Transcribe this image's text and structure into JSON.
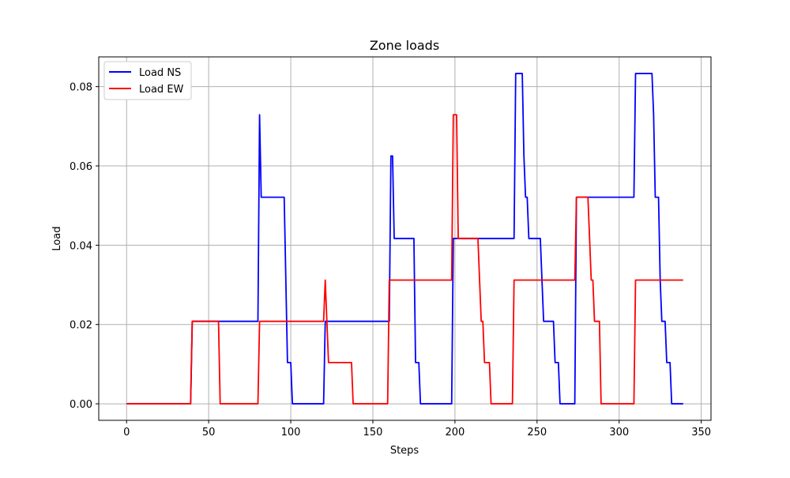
{
  "chart_data": {
    "type": "line",
    "title": "Zone loads",
    "xlabel": "Steps",
    "ylabel": "Load",
    "xlim": [
      -16.95,
      355.95
    ],
    "ylim": [
      -0.00417,
      0.0875
    ],
    "xticks": [
      0,
      50,
      100,
      150,
      200,
      250,
      300,
      350
    ],
    "yticks": [
      0.0,
      0.02,
      0.04,
      0.06,
      0.08
    ],
    "xtick_labels": [
      "0",
      "50",
      "100",
      "150",
      "200",
      "250",
      "300",
      "350"
    ],
    "ytick_labels": [
      "0.00",
      "0.02",
      "0.04",
      "0.06",
      "0.08"
    ],
    "grid": true,
    "legend_position": "upper-left",
    "series": [
      {
        "name": "Load NS",
        "color": "#0000ff",
        "points": [
          [
            0,
            0
          ],
          [
            39,
            0
          ],
          [
            40,
            0.0208
          ],
          [
            80,
            0.0208
          ],
          [
            81,
            0.0729
          ],
          [
            82,
            0.0521
          ],
          [
            96,
            0.0521
          ],
          [
            97,
            0.0312
          ],
          [
            98,
            0.0104
          ],
          [
            100,
            0.0104
          ],
          [
            101,
            0
          ],
          [
            120,
            0
          ],
          [
            121,
            0.0208
          ],
          [
            160,
            0.0208
          ],
          [
            161,
            0.0625
          ],
          [
            162,
            0.0625
          ],
          [
            163,
            0.0417
          ],
          [
            175,
            0.0417
          ],
          [
            176,
            0.0104
          ],
          [
            178,
            0.0104
          ],
          [
            179,
            0
          ],
          [
            198,
            0
          ],
          [
            199,
            0.0417
          ],
          [
            236,
            0.0417
          ],
          [
            237,
            0.0833
          ],
          [
            241,
            0.0833
          ],
          [
            242,
            0.0625
          ],
          [
            243,
            0.0521
          ],
          [
            244,
            0.0521
          ],
          [
            245,
            0.0417
          ],
          [
            252,
            0.0417
          ],
          [
            253,
            0.0312
          ],
          [
            254,
            0.0208
          ],
          [
            260,
            0.0208
          ],
          [
            261,
            0.0104
          ],
          [
            263,
            0.0104
          ],
          [
            264,
            0
          ],
          [
            273,
            0
          ],
          [
            274,
            0.0521
          ],
          [
            309,
            0.0521
          ],
          [
            310,
            0.0833
          ],
          [
            320,
            0.0833
          ],
          [
            321,
            0.0729
          ],
          [
            322,
            0.0521
          ],
          [
            324,
            0.0521
          ],
          [
            325,
            0.0312
          ],
          [
            326,
            0.0208
          ],
          [
            328,
            0.0208
          ],
          [
            329,
            0.0104
          ],
          [
            331,
            0.0104
          ],
          [
            332,
            0
          ],
          [
            339,
            0
          ]
        ]
      },
      {
        "name": "Load EW",
        "color": "#ff0000",
        "points": [
          [
            0,
            0
          ],
          [
            39,
            0
          ],
          [
            40,
            0.0208
          ],
          [
            56,
            0.0208
          ],
          [
            57,
            0
          ],
          [
            80,
            0
          ],
          [
            81,
            0.0208
          ],
          [
            120,
            0.0208
          ],
          [
            121,
            0.0312
          ],
          [
            122,
            0.0208
          ],
          [
            123,
            0.0104
          ],
          [
            137,
            0.0104
          ],
          [
            138,
            0
          ],
          [
            159,
            0
          ],
          [
            160,
            0.0312
          ],
          [
            198,
            0.0312
          ],
          [
            199,
            0.0729
          ],
          [
            201,
            0.0729
          ],
          [
            202,
            0.0417
          ],
          [
            214,
            0.0417
          ],
          [
            215,
            0.0312
          ],
          [
            216,
            0.0208
          ],
          [
            217,
            0.0208
          ],
          [
            218,
            0.0104
          ],
          [
            221,
            0.0104
          ],
          [
            222,
            0
          ],
          [
            235,
            0
          ],
          [
            236,
            0.0312
          ],
          [
            273,
            0.0312
          ],
          [
            274,
            0.0521
          ],
          [
            281,
            0.0521
          ],
          [
            282,
            0.0417
          ],
          [
            283,
            0.0312
          ],
          [
            284,
            0.0312
          ],
          [
            285,
            0.0208
          ],
          [
            288,
            0.0208
          ],
          [
            289,
            0
          ],
          [
            309,
            0
          ],
          [
            310,
            0.0312
          ],
          [
            339,
            0.0312
          ]
        ]
      }
    ]
  }
}
